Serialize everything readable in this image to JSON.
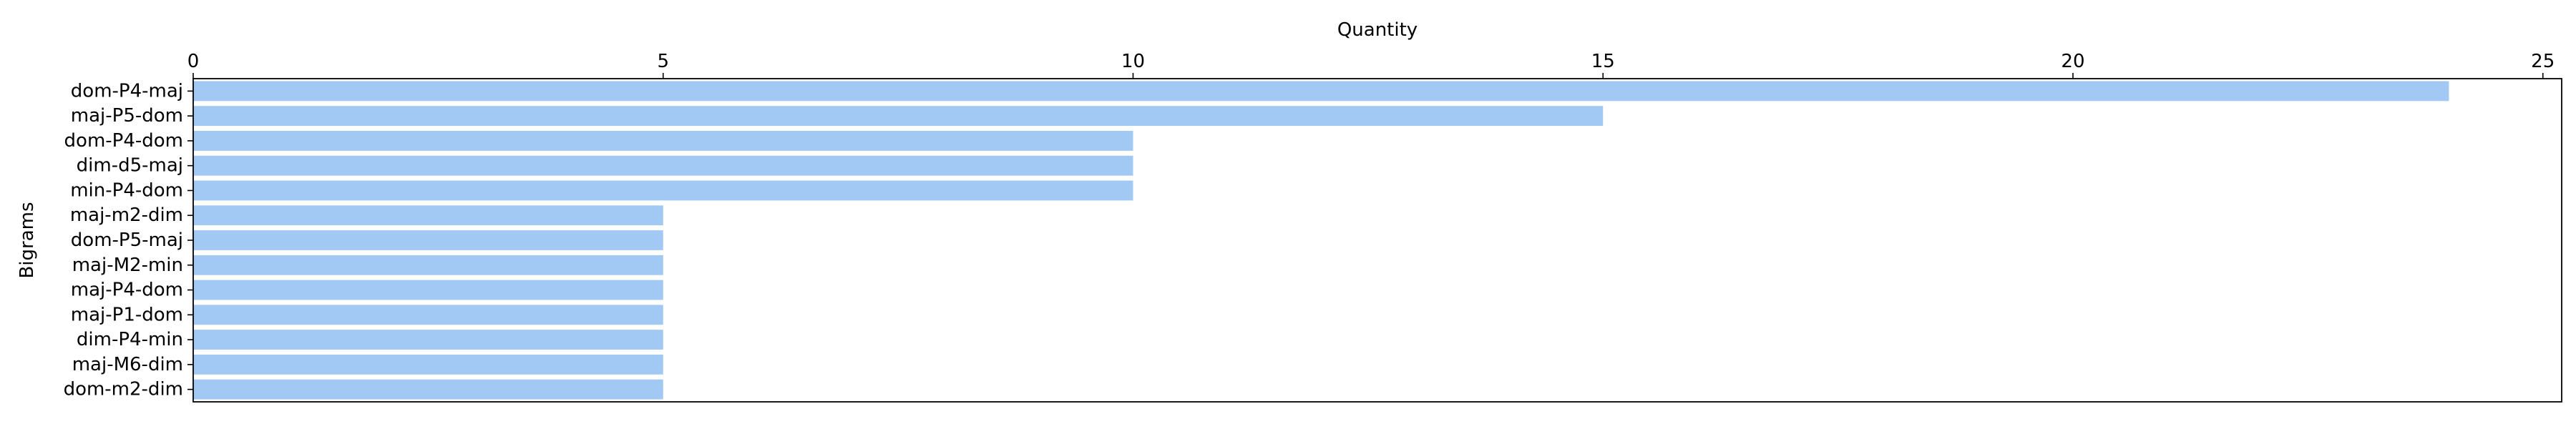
{
  "chart_data": {
    "type": "bar",
    "orientation": "horizontal",
    "title": "",
    "xlabel": "Quantity",
    "ylabel": "Bigrams",
    "x_axis_position": "top",
    "xlim": [
      0,
      25.2
    ],
    "xticks": [
      0,
      5,
      10,
      15,
      20,
      25
    ],
    "grid": false,
    "bar_color": "#a1c9f4",
    "categories": [
      "dom-P4-maj",
      "maj-P5-dom",
      "dom-P4-dom",
      "dim-d5-maj",
      "min-P4-dom",
      "maj-m2-dim",
      "dom-P5-maj",
      "maj-M2-min",
      "maj-P4-dom",
      "maj-P1-dom",
      "dim-P4-min",
      "maj-M6-dim",
      "dom-m2-dim"
    ],
    "values": [
      24,
      15,
      10,
      10,
      10,
      5,
      5,
      5,
      5,
      5,
      5,
      5,
      5
    ]
  }
}
